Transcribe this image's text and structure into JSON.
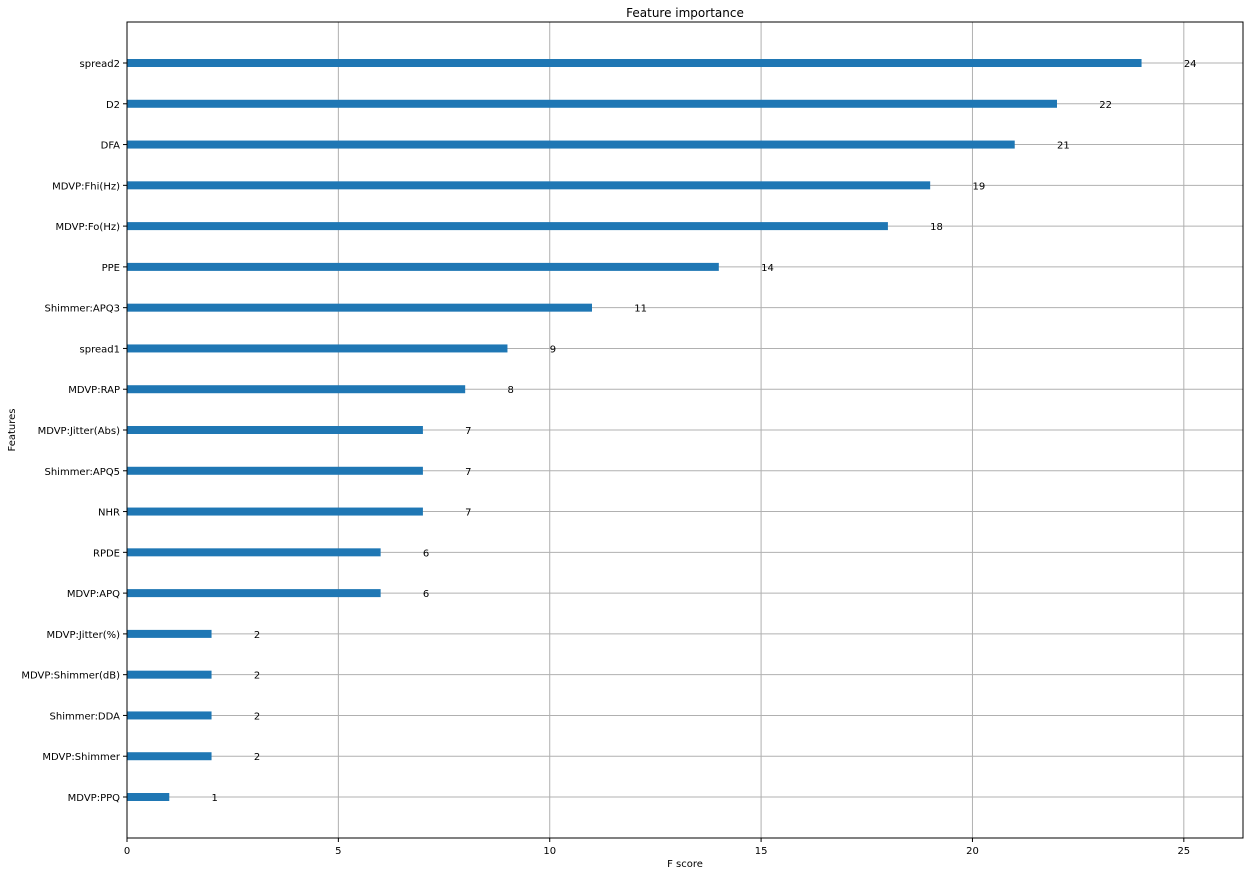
{
  "chart_data": {
    "type": "bar",
    "orientation": "horizontal",
    "title": "Feature importance",
    "xlabel": "F score",
    "ylabel": "Features",
    "xlim": [
      0,
      26.4
    ],
    "xticks": [
      0,
      5,
      10,
      15,
      20,
      25
    ],
    "grid": true,
    "bar_color": "#1f77b4",
    "categories": [
      "spread2",
      "D2",
      "DFA",
      "MDVP:Fhi(Hz)",
      "MDVP:Fo(Hz)",
      "PPE",
      "Shimmer:APQ3",
      "spread1",
      "MDVP:RAP",
      "MDVP:Jitter(Abs)",
      "Shimmer:APQ5",
      "NHR",
      "RPDE",
      "MDVP:APQ",
      "MDVP:Jitter(%)",
      "MDVP:Shimmer(dB)",
      "Shimmer:DDA",
      "MDVP:Shimmer",
      "MDVP:PPQ"
    ],
    "values": [
      24,
      22,
      21,
      19,
      18,
      14,
      11,
      9,
      8,
      7,
      7,
      7,
      6,
      6,
      2,
      2,
      2,
      2,
      1
    ]
  }
}
